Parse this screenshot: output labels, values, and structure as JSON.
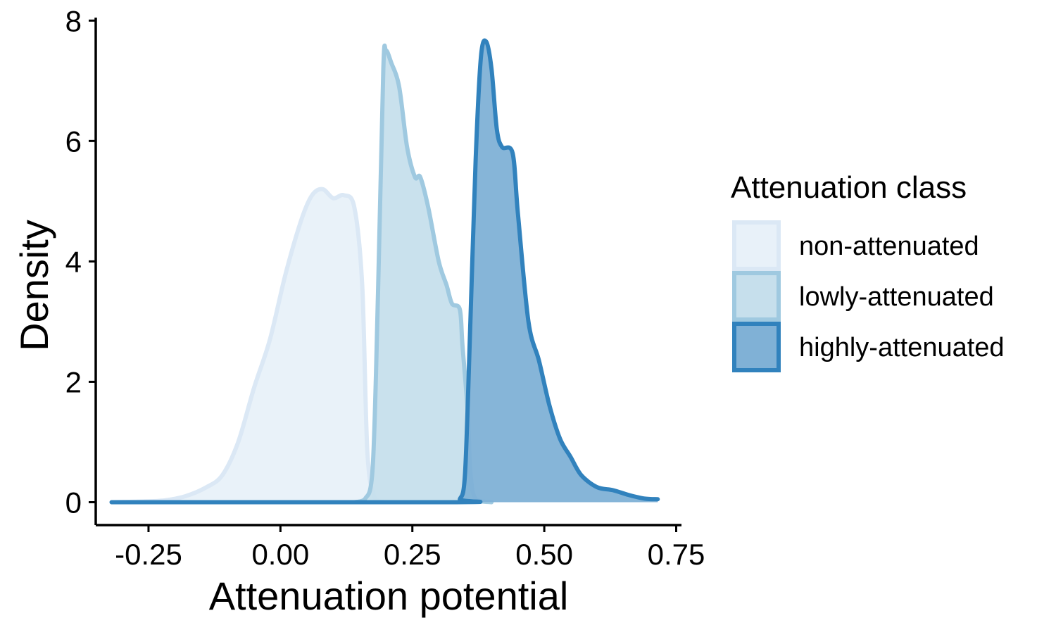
{
  "chart_data": {
    "type": "area",
    "xlabel": "Attenuation potential",
    "ylabel": "Density",
    "xlim": [
      -0.35,
      0.76
    ],
    "ylim": [
      -0.38,
      8.05
    ],
    "x_ticks": [
      -0.25,
      0.0,
      0.25,
      0.5,
      0.75
    ],
    "x_tick_labels": [
      "-0.25",
      "0.00",
      "0.25",
      "0.50",
      "0.75"
    ],
    "y_ticks": [
      0,
      2,
      4,
      6,
      8
    ],
    "y_tick_labels": [
      "0",
      "2",
      "4",
      "6",
      "8"
    ],
    "grid": false,
    "legend": {
      "title": "Attenuation class",
      "position": "right"
    },
    "series": [
      {
        "name": "non-attenuated",
        "fill": "#e8f1f9",
        "stroke": "#dbe8f5",
        "points": [
          [
            -0.32,
            0
          ],
          [
            -0.27,
            0.01
          ],
          [
            -0.22,
            0.03
          ],
          [
            -0.18,
            0.1
          ],
          [
            -0.14,
            0.25
          ],
          [
            -0.11,
            0.45
          ],
          [
            -0.08,
            1.0
          ],
          [
            -0.05,
            1.9
          ],
          [
            -0.02,
            2.7
          ],
          [
            0.01,
            3.8
          ],
          [
            0.04,
            4.7
          ],
          [
            0.06,
            5.1
          ],
          [
            0.08,
            5.2
          ],
          [
            0.1,
            5.05
          ],
          [
            0.12,
            5.1
          ],
          [
            0.14,
            4.9
          ],
          [
            0.155,
            3.6
          ],
          [
            0.165,
            0.8
          ],
          [
            0.18,
            0.05
          ],
          [
            0.2,
            0
          ]
        ]
      },
      {
        "name": "lowly-attenuated",
        "fill": "#c6dfec",
        "stroke": "#9fc9e0",
        "points": [
          [
            0.14,
            0
          ],
          [
            0.16,
            0.05
          ],
          [
            0.175,
            0.6
          ],
          [
            0.185,
            3.5
          ],
          [
            0.195,
            7.2
          ],
          [
            0.2,
            7.5
          ],
          [
            0.21,
            7.3
          ],
          [
            0.225,
            6.9
          ],
          [
            0.24,
            5.9
          ],
          [
            0.255,
            5.4
          ],
          [
            0.265,
            5.4
          ],
          [
            0.28,
            4.9
          ],
          [
            0.3,
            4.0
          ],
          [
            0.315,
            3.6
          ],
          [
            0.325,
            3.3
          ],
          [
            0.34,
            3.2
          ],
          [
            0.345,
            2.6
          ],
          [
            0.355,
            1.5
          ],
          [
            0.36,
            0.5
          ],
          [
            0.37,
            0.05
          ],
          [
            0.4,
            0
          ]
        ]
      },
      {
        "name": "highly-attenuated",
        "fill": "#80b1d6",
        "stroke": "#3182bd",
        "points": [
          [
            -0.32,
            0
          ],
          [
            0.33,
            0
          ],
          [
            0.34,
            0.05
          ],
          [
            0.35,
            0.5
          ],
          [
            0.36,
            3.0
          ],
          [
            0.37,
            5.7
          ],
          [
            0.38,
            7.4
          ],
          [
            0.39,
            7.65
          ],
          [
            0.4,
            7.2
          ],
          [
            0.41,
            6.2
          ],
          [
            0.42,
            5.9
          ],
          [
            0.44,
            5.8
          ],
          [
            0.45,
            4.8
          ],
          [
            0.47,
            3.0
          ],
          [
            0.49,
            2.35
          ],
          [
            0.51,
            1.6
          ],
          [
            0.53,
            1.05
          ],
          [
            0.55,
            0.75
          ],
          [
            0.57,
            0.45
          ],
          [
            0.6,
            0.25
          ],
          [
            0.63,
            0.2
          ],
          [
            0.66,
            0.12
          ],
          [
            0.69,
            0.06
          ],
          [
            0.715,
            0.05
          ]
        ]
      }
    ]
  }
}
